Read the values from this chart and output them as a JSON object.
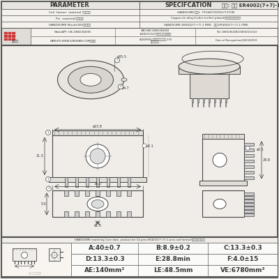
{
  "title": "品名: 焕升 ER4002(7+7)-1",
  "param_header": "PARAMETER",
  "spec_header": "SPECIFCATION",
  "bg_color": "#f0ede8",
  "border_color": "#555555",
  "text_color": "#333333",
  "rows": [
    [
      "Coil  former  material /线圈材料",
      "HANDSOME(版方):  PF268/T200H()/T370M"
    ],
    [
      "Pin  material/磁子材料",
      "Copper-tin alloy(CuSn),tin(Sn) plated(铜合金锡镀锡包脚组"
    ],
    [
      "HANDSOME Mould NO/版方品名",
      "HANDSOME-ER4002(7+7)-1 PINS   版升-ER4002(7+7)-1 PINS"
    ]
  ],
  "contact_info": [
    [
      "WhatsAPP:+86-18682364083",
      "WECHAT:18682364083\n18682151547（微信同号）点链接加",
      "TEL:18682364083/18682151547"
    ],
    [
      "WEBSITE:WWW.SZBOBBIN.COM（网站）",
      "ADDRESS:东莞市石排下沙大道 278\n号版升工业园",
      "Date of Recognition:JUN/18/2021"
    ]
  ],
  "specs": [
    [
      "A:40±0.7",
      "B:8.9±0.2",
      "C:13.3±0.3"
    ],
    [
      "D:13.3±0.3",
      "E:28.8min",
      "F:4.0±15"
    ],
    [
      "AE:140mm²",
      "LE:48.5mm",
      "VE:6780mm³"
    ]
  ],
  "core_text": "HANDSOME matching Core data  product for 14-pins ER4002(7+7)-1 pins coil former/版升磁芯相关数据",
  "logo_text": "版升塑料",
  "watermark1": "天宝 塑料有限公司",
  "watermark2": "版升塑料"
}
